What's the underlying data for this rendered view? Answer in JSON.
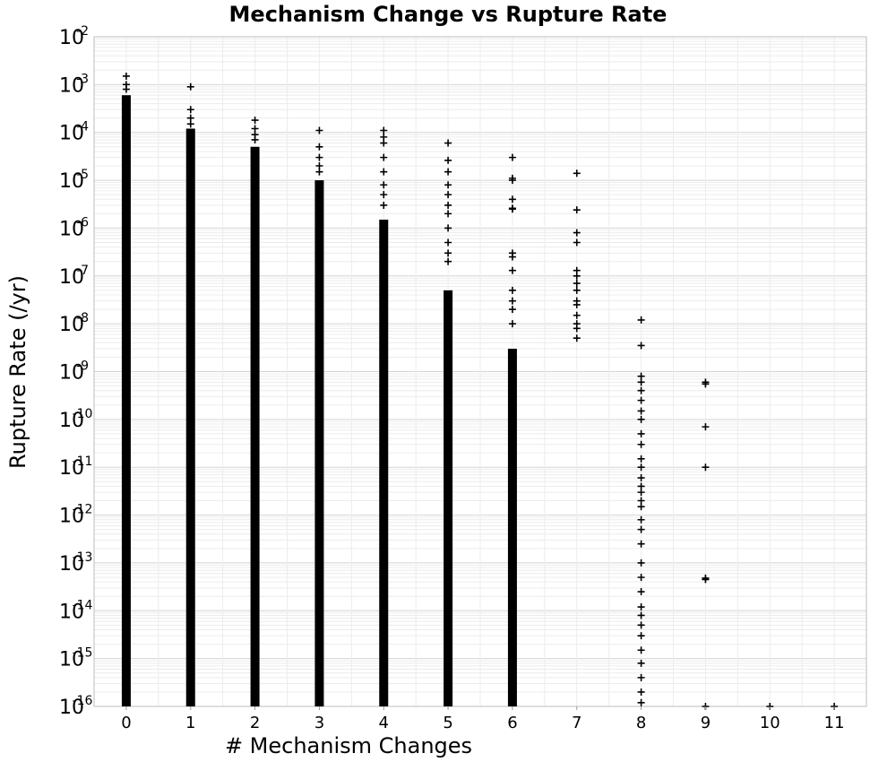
{
  "chart_data": {
    "type": "scatter",
    "title": "Mechanism Change vs Rupture Rate",
    "xlabel": "# Mechanism Changes",
    "ylabel": "Rupture Rate (/yr)",
    "xlim": [
      -0.5,
      11.5
    ],
    "xticks": [
      0,
      1,
      2,
      3,
      4,
      5,
      6,
      7,
      8,
      9,
      10,
      11
    ],
    "ylim": [
      1e-16,
      0.01
    ],
    "yscale": "log",
    "ytick_base": "10",
    "ytick_exponents": [
      "-16",
      "-15",
      "-14",
      "-13",
      "-12",
      "-11",
      "-10",
      "-9",
      "-8",
      "-7",
      "-6",
      "-5",
      "-4",
      "-3",
      "-2"
    ],
    "grid": true,
    "marker": "+",
    "series": [
      {
        "dense_columns": [
          {
            "x": 0,
            "from": 1e-16,
            "to": 0.0006
          },
          {
            "x": 1,
            "from": 1e-16,
            "to": 0.00012
          },
          {
            "x": 2,
            "from": 1e-16,
            "to": 5e-05
          },
          {
            "x": 3,
            "from": 1e-16,
            "to": 1e-05
          },
          {
            "x": 4,
            "from": 1e-16,
            "to": 1.5e-06
          },
          {
            "x": 5,
            "from": 1e-16,
            "to": 5e-08
          },
          {
            "x": 6,
            "from": 1e-16,
            "to": 3e-09
          }
        ],
        "points": [
          {
            "x": 0,
            "y": 0.0015
          },
          {
            "x": 0,
            "y": 0.001
          },
          {
            "x": 0,
            "y": 0.0008
          },
          {
            "x": 1,
            "y": 0.0009
          },
          {
            "x": 1,
            "y": 0.0003
          },
          {
            "x": 1,
            "y": 0.0002
          },
          {
            "x": 1,
            "y": 0.00015
          },
          {
            "x": 2,
            "y": 0.00018
          },
          {
            "x": 2,
            "y": 0.00012
          },
          {
            "x": 2,
            "y": 9e-05
          },
          {
            "x": 2,
            "y": 7e-05
          },
          {
            "x": 3,
            "y": 0.00011
          },
          {
            "x": 3,
            "y": 5e-05
          },
          {
            "x": 3,
            "y": 3e-05
          },
          {
            "x": 3,
            "y": 2e-05
          },
          {
            "x": 3,
            "y": 1.5e-05
          },
          {
            "x": 4,
            "y": 0.00011
          },
          {
            "x": 4,
            "y": 8e-05
          },
          {
            "x": 4,
            "y": 6e-05
          },
          {
            "x": 4,
            "y": 3e-05
          },
          {
            "x": 4,
            "y": 1.5e-05
          },
          {
            "x": 4,
            "y": 8e-06
          },
          {
            "x": 4,
            "y": 5e-06
          },
          {
            "x": 4,
            "y": 3e-06
          },
          {
            "x": 5,
            "y": 6e-05
          },
          {
            "x": 5,
            "y": 2.6e-05
          },
          {
            "x": 5,
            "y": 1.5e-05
          },
          {
            "x": 5,
            "y": 8e-06
          },
          {
            "x": 5,
            "y": 5e-06
          },
          {
            "x": 5,
            "y": 3e-06
          },
          {
            "x": 5,
            "y": 2e-06
          },
          {
            "x": 5,
            "y": 1e-06
          },
          {
            "x": 5,
            "y": 5e-07
          },
          {
            "x": 5,
            "y": 3e-07
          },
          {
            "x": 5,
            "y": 2e-07
          },
          {
            "x": 6,
            "y": 3e-05
          },
          {
            "x": 6,
            "y": 1.1e-05
          },
          {
            "x": 6,
            "y": 1e-05
          },
          {
            "x": 6,
            "y": 4e-06
          },
          {
            "x": 6,
            "y": 2.6e-06
          },
          {
            "x": 6,
            "y": 2.5e-06
          },
          {
            "x": 6,
            "y": 3e-07
          },
          {
            "x": 6,
            "y": 2.5e-07
          },
          {
            "x": 6,
            "y": 1.3e-07
          },
          {
            "x": 6,
            "y": 5e-08
          },
          {
            "x": 6,
            "y": 3e-08
          },
          {
            "x": 6,
            "y": 2e-08
          },
          {
            "x": 6,
            "y": 1e-08
          },
          {
            "x": 7,
            "y": 1.4e-05
          },
          {
            "x": 7,
            "y": 2.4e-06
          },
          {
            "x": 7,
            "y": 8e-07
          },
          {
            "x": 7,
            "y": 5e-07
          },
          {
            "x": 7,
            "y": 1.3e-07
          },
          {
            "x": 7,
            "y": 1e-07
          },
          {
            "x": 7,
            "y": 7e-08
          },
          {
            "x": 7,
            "y": 5e-08
          },
          {
            "x": 7,
            "y": 3e-08
          },
          {
            "x": 7,
            "y": 2.5e-08
          },
          {
            "x": 7,
            "y": 1.5e-08
          },
          {
            "x": 7,
            "y": 1e-08
          },
          {
            "x": 7,
            "y": 8e-09
          },
          {
            "x": 7,
            "y": 5e-09
          },
          {
            "x": 8,
            "y": 1.2e-08
          },
          {
            "x": 8,
            "y": 3.5e-09
          },
          {
            "x": 8,
            "y": 8e-10
          },
          {
            "x": 8,
            "y": 6e-10
          },
          {
            "x": 8,
            "y": 4e-10
          },
          {
            "x": 8,
            "y": 2.5e-10
          },
          {
            "x": 8,
            "y": 1.5e-10
          },
          {
            "x": 8,
            "y": 1e-10
          },
          {
            "x": 8,
            "y": 5e-11
          },
          {
            "x": 8,
            "y": 3e-11
          },
          {
            "x": 8,
            "y": 1.5e-11
          },
          {
            "x": 8,
            "y": 1e-11
          },
          {
            "x": 8,
            "y": 6e-12
          },
          {
            "x": 8,
            "y": 4e-12
          },
          {
            "x": 8,
            "y": 3e-12
          },
          {
            "x": 8,
            "y": 2e-12
          },
          {
            "x": 8,
            "y": 1.5e-12
          },
          {
            "x": 8,
            "y": 8e-13
          },
          {
            "x": 8,
            "y": 5e-13
          },
          {
            "x": 8,
            "y": 2.5e-13
          },
          {
            "x": 8,
            "y": 1e-13
          },
          {
            "x": 8,
            "y": 5e-14
          },
          {
            "x": 8,
            "y": 2.5e-14
          },
          {
            "x": 8,
            "y": 1.2e-14
          },
          {
            "x": 8,
            "y": 8e-15
          },
          {
            "x": 8,
            "y": 5e-15
          },
          {
            "x": 8,
            "y": 3e-15
          },
          {
            "x": 8,
            "y": 1.5e-15
          },
          {
            "x": 8,
            "y": 8e-16
          },
          {
            "x": 8,
            "y": 4e-16
          },
          {
            "x": 8,
            "y": 2e-16
          },
          {
            "x": 8,
            "y": 1.2e-16
          },
          {
            "x": 9,
            "y": 6e-10
          },
          {
            "x": 9,
            "y": 5.5e-10
          },
          {
            "x": 9,
            "y": 7e-11
          },
          {
            "x": 9,
            "y": 1e-11
          },
          {
            "x": 9,
            "y": 4.8e-14
          },
          {
            "x": 9,
            "y": 4.5e-14
          },
          {
            "x": 9,
            "y": 1e-16
          },
          {
            "x": 10,
            "y": 1e-16
          },
          {
            "x": 11,
            "y": 1e-16
          }
        ]
      }
    ]
  }
}
